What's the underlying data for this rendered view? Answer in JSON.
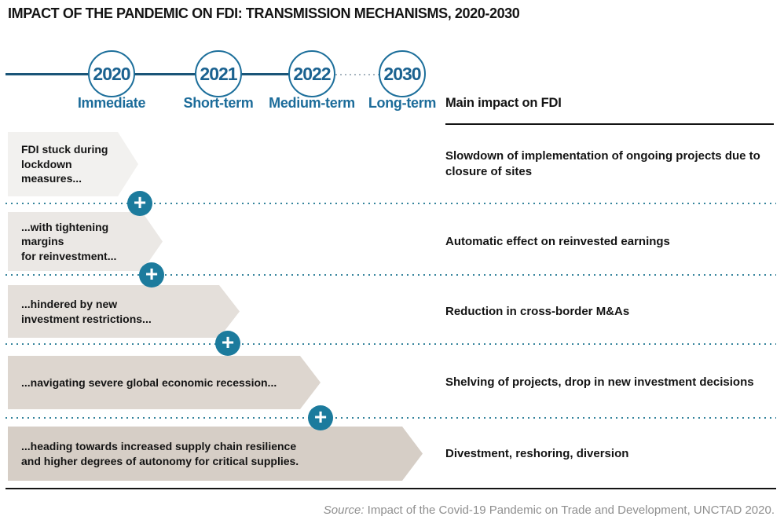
{
  "title": "IMPACT OF THE PANDEMIC ON FDI: TRANSMISSION MECHANISMS, 2020-2030",
  "timeline": {
    "milestones": [
      {
        "year": "2020",
        "label": "Immediate"
      },
      {
        "year": "2021",
        "label": "Short-term"
      },
      {
        "year": "2022",
        "label": "Medium-term"
      },
      {
        "year": "2030",
        "label": "Long-term"
      }
    ]
  },
  "impact_column_header": "Main impact on FDI",
  "rows": [
    {
      "band_lines": [
        "FDI stuck during",
        "lockdown",
        "measures..."
      ],
      "impact_lines": [
        "Slowdown of implementation of ongoing projects due to",
        "closure of sites"
      ]
    },
    {
      "band_lines": [
        "...with tightening",
        "margins",
        "for reinvestment..."
      ],
      "impact_lines": [
        "Automatic effect on reinvested earnings"
      ]
    },
    {
      "band_lines": [
        "...hindered by new",
        "investment restrictions..."
      ],
      "impact_lines": [
        "Reduction in cross-border M&As"
      ]
    },
    {
      "band_lines": [
        "...navigating severe global economic recession..."
      ],
      "impact_lines": [
        "Shelving of projects, drop in new investment decisions"
      ]
    },
    {
      "band_lines": [
        "...heading towards increased supply chain resilience",
        "and higher degrees of autonomy for critical supplies."
      ],
      "impact_lines": [
        "Divestment, reshoring, diversion"
      ]
    }
  ],
  "plus_symbol": "+",
  "source": {
    "label": "Source:",
    "text": " Impact of the Covid-19 Pandemic on Trade and Development, UNCTAD 2020."
  },
  "colors": {
    "timeline_blue": "#1a5578",
    "circle_border_blue": "#1d6f9b",
    "year_text_blue": "#1b6290",
    "term_label_blue": "#1c6c9a",
    "plus_teal": "#1c7b9d",
    "dotted_separator_teal": "#35849c",
    "band_shades": [
      "#f2f1ef",
      "#ebe8e5",
      "#e4dfda",
      "#ddd6cf",
      "#d6cec6"
    ],
    "text_black": "#141414",
    "source_gray": "#8f8f8f"
  }
}
